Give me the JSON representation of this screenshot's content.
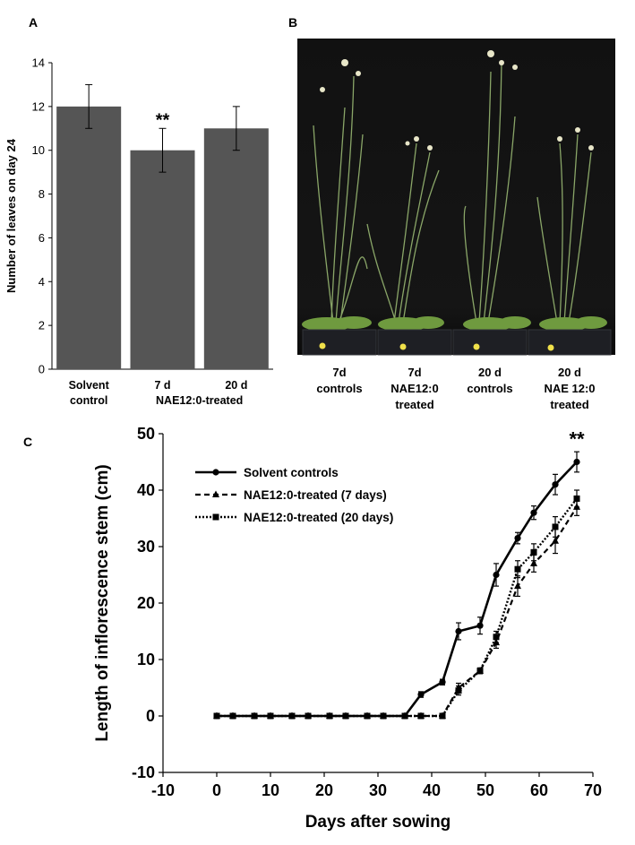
{
  "panel_letters": {
    "a": "A",
    "b": "B",
    "c": "C"
  },
  "panel_b": {
    "labels": [
      [
        "7d",
        "controls"
      ],
      [
        "7d",
        "NAE12:0",
        "treated"
      ],
      [
        "20 d",
        "controls"
      ],
      [
        "20 d",
        "NAE 12:0",
        "treated"
      ]
    ]
  },
  "chart_data": [
    {
      "type": "bar",
      "panel": "A",
      "ylabel": "Number of leaves on day 24",
      "ylim": [
        0,
        14
      ],
      "yticks": [
        0,
        2,
        4,
        6,
        8,
        10,
        12,
        14
      ],
      "categories": [
        {
          "lines": [
            "Solvent",
            "control"
          ]
        },
        {
          "lines": [
            "7 d"
          ]
        },
        {
          "lines": [
            "20 d"
          ]
        }
      ],
      "group_label": "NAE12:0-treated",
      "values": [
        12,
        10,
        11
      ],
      "errors": [
        1,
        1,
        1
      ],
      "annotation": {
        "text": "**",
        "category_index": 1
      },
      "bar_color": "#555555",
      "grid": false
    },
    {
      "type": "line",
      "panel": "C",
      "xlabel": "Days after sowing",
      "ylabel": "Length of inflorescence stem (cm)",
      "xlim": [
        -10,
        70
      ],
      "ylim": [
        -10,
        50
      ],
      "xticks": [
        -10,
        0,
        10,
        20,
        30,
        40,
        50,
        60,
        70
      ],
      "yticks": [
        -10,
        0,
        10,
        20,
        30,
        40,
        50
      ],
      "annotation": {
        "text": "**",
        "x": 67,
        "y": 48.5
      },
      "legend_position": "top-left",
      "grid": false,
      "series": [
        {
          "name": "Solvent controls",
          "style": "solid",
          "marker": "circle",
          "x": [
            0,
            3,
            7,
            10,
            14,
            17,
            21,
            24,
            28,
            31,
            35,
            38,
            42,
            45,
            49,
            52,
            56,
            59,
            63,
            67
          ],
          "y": [
            0,
            0,
            0,
            0,
            0,
            0,
            0,
            0,
            0,
            0,
            0,
            3.8,
            6,
            15,
            16,
            25,
            31.5,
            36,
            41,
            45
          ],
          "err": [
            0,
            0,
            0,
            0,
            0,
            0,
            0,
            0,
            0,
            0,
            0,
            0.5,
            0.5,
            1.5,
            1.5,
            2,
            1,
            1.2,
            1.8,
            1.8
          ]
        },
        {
          "name": "NAE12:0-treated (7 days)",
          "style": "dashed",
          "marker": "triangle",
          "x": [
            0,
            3,
            7,
            10,
            14,
            17,
            21,
            24,
            28,
            31,
            35,
            38,
            42,
            45,
            49,
            52,
            56,
            59,
            63,
            67
          ],
          "y": [
            0,
            0,
            0,
            0,
            0,
            0,
            0,
            0,
            0,
            0,
            0,
            0,
            0,
            5,
            8,
            13,
            23,
            27,
            31,
            37
          ],
          "err": [
            0,
            0,
            0,
            0,
            0,
            0,
            0,
            0,
            0,
            0,
            0,
            0,
            0,
            0.8,
            0.5,
            1,
            1.8,
            1.5,
            2.2,
            1.5
          ]
        },
        {
          "name": "NAE12:0-treated (20 days)",
          "style": "dotted",
          "marker": "square",
          "x": [
            0,
            3,
            7,
            10,
            14,
            17,
            21,
            24,
            28,
            31,
            35,
            38,
            42,
            45,
            49,
            52,
            56,
            59,
            63,
            67
          ],
          "y": [
            0,
            0,
            0,
            0,
            0,
            0,
            0,
            0,
            0,
            0,
            0,
            0,
            0,
            4.5,
            8,
            14,
            26,
            29,
            33.5,
            38.5
          ],
          "err": [
            0,
            0,
            0,
            0,
            0,
            0,
            0,
            0,
            0,
            0,
            0,
            0,
            0,
            0.8,
            0.5,
            1,
            1.5,
            1.5,
            1.8,
            1.5
          ]
        }
      ]
    }
  ]
}
